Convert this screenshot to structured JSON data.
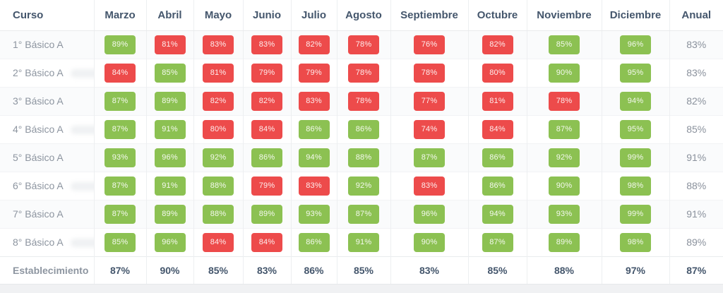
{
  "colors": {
    "green": "#8CC152",
    "red": "#ED4B4B",
    "header_text": "#44566C"
  },
  "table": {
    "columns": [
      "Curso",
      "Marzo",
      "Abril",
      "Mayo",
      "Junio",
      "Julio",
      "Agosto",
      "Septiembre",
      "Octubre",
      "Noviembre",
      "Diciembre",
      "Anual"
    ],
    "green_threshold": 85,
    "rows": [
      {
        "curso": "1° Básico A",
        "redacted": false,
        "values": [
          "89%",
          "81%",
          "83%",
          "83%",
          "82%",
          "78%",
          "76%",
          "82%",
          "85%",
          "96%"
        ],
        "anual": "83%"
      },
      {
        "curso": "2° Básico A",
        "redacted": true,
        "values": [
          "84%",
          "85%",
          "81%",
          "79%",
          "79%",
          "78%",
          "78%",
          "80%",
          "90%",
          "95%"
        ],
        "anual": "83%"
      },
      {
        "curso": "3° Básico A",
        "redacted": false,
        "values": [
          "87%",
          "89%",
          "82%",
          "82%",
          "83%",
          "78%",
          "77%",
          "81%",
          "78%",
          "94%"
        ],
        "anual": "82%"
      },
      {
        "curso": "4° Básico A",
        "redacted": true,
        "values": [
          "87%",
          "91%",
          "80%",
          "84%",
          "86%",
          "86%",
          "74%",
          "84%",
          "87%",
          "95%"
        ],
        "anual": "85%"
      },
      {
        "curso": "5° Básico A",
        "redacted": false,
        "values": [
          "93%",
          "96%",
          "92%",
          "86%",
          "94%",
          "88%",
          "87%",
          "86%",
          "92%",
          "99%"
        ],
        "anual": "91%"
      },
      {
        "curso": "6° Básico A",
        "redacted": true,
        "values": [
          "87%",
          "91%",
          "88%",
          "79%",
          "83%",
          "92%",
          "83%",
          "86%",
          "90%",
          "98%"
        ],
        "anual": "88%"
      },
      {
        "curso": "7° Básico A",
        "redacted": false,
        "values": [
          "87%",
          "89%",
          "88%",
          "89%",
          "93%",
          "87%",
          "96%",
          "94%",
          "93%",
          "99%"
        ],
        "anual": "91%"
      },
      {
        "curso": "8° Básico A",
        "redacted": true,
        "values": [
          "85%",
          "96%",
          "84%",
          "84%",
          "86%",
          "91%",
          "90%",
          "87%",
          "89%",
          "98%"
        ],
        "anual": "89%"
      }
    ],
    "footer": {
      "label": "Establecimiento",
      "values": [
        "87%",
        "90%",
        "85%",
        "83%",
        "86%",
        "85%",
        "83%",
        "85%",
        "88%",
        "97%"
      ],
      "anual": "87%"
    }
  }
}
